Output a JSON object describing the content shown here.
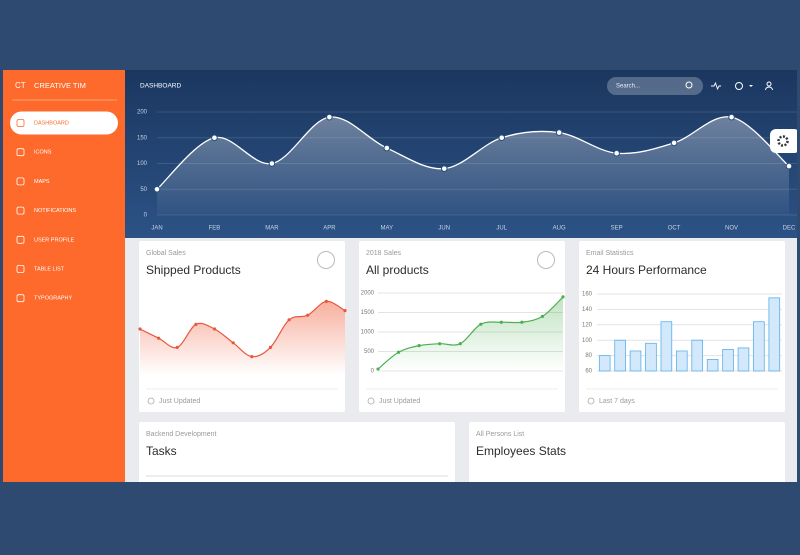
{
  "sidebar": {
    "logo": "CT",
    "brand": "CREATIVE TIM",
    "nav": [
      "DASHBOARD",
      "ICONS",
      "MAPS",
      "NOTIFICATIONS",
      "USER PROFILE",
      "TABLE LIST",
      "TYPOGRAPHY"
    ],
    "active": 0
  },
  "navbar": {
    "title": "DASHBOARD",
    "search_placeholder": "Search..."
  },
  "cards": [
    {
      "category": "Global Sales",
      "title": "Shipped Products",
      "footer": "Just Updated"
    },
    {
      "category": "2018 Sales",
      "title": "All products",
      "footer": "Just Updated"
    },
    {
      "category": "Email Statistics",
      "title": "24 Hours Performance",
      "footer": "Last 7 days"
    },
    {
      "category": "Backend Development",
      "title": "Tasks"
    },
    {
      "category": "All Persons List",
      "title": "Employees Stats"
    }
  ],
  "chart_data": [
    {
      "type": "line",
      "categories": [
        "JAN",
        "FEB",
        "MAR",
        "APR",
        "MAY",
        "JUN",
        "JUL",
        "AUG",
        "SEP",
        "OCT",
        "NOV",
        "DEC"
      ],
      "values": [
        50,
        150,
        100,
        190,
        130,
        90,
        150,
        160,
        120,
        140,
        190,
        95
      ],
      "ylim": [
        0,
        200
      ],
      "yticks": [
        0,
        50,
        100,
        150,
        200
      ],
      "grid": true,
      "color": "#ffffff"
    },
    {
      "type": "line",
      "values": [
        50,
        40,
        30,
        55,
        50,
        35,
        20,
        30,
        60,
        65,
        80,
        70
      ],
      "ylim": [
        0,
        100
      ],
      "grid": false,
      "color": "#e8583e"
    },
    {
      "type": "line",
      "values": [
        50,
        480,
        650,
        700,
        700,
        1200,
        1250,
        1250,
        1400,
        1900
      ],
      "ylim": [
        0,
        2000
      ],
      "yticks": [
        0,
        500,
        1000,
        1500,
        2000
      ],
      "grid": true,
      "color": "#4caf50"
    },
    {
      "type": "bar",
      "values": [
        80,
        100,
        86,
        96,
        124,
        86,
        100,
        75,
        88,
        90,
        124,
        155
      ],
      "ylim": [
        60,
        160
      ],
      "yticks": [
        60,
        80,
        100,
        120,
        140,
        160
      ],
      "grid": true,
      "color": "#5ab0ec"
    }
  ]
}
